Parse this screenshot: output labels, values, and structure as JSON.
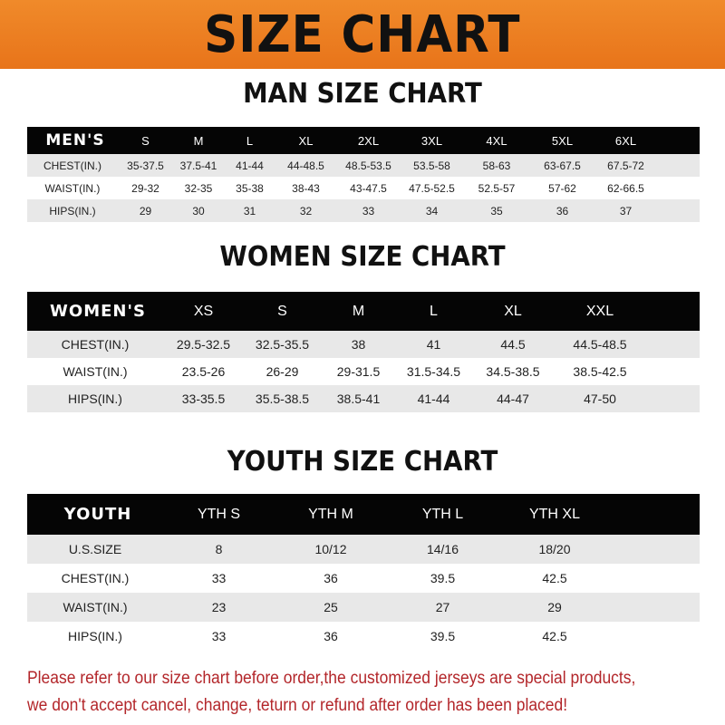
{
  "banner": {
    "title": "SIZE CHART"
  },
  "men": {
    "title": "MAN SIZE CHART",
    "header": [
      "MEN'S",
      "S",
      "M",
      "L",
      "XL",
      "2XL",
      "3XL",
      "4XL",
      "5XL",
      "6XL"
    ],
    "rows": [
      [
        "CHEST(IN.)",
        "35-37.5",
        "37.5-41",
        "41-44",
        "44-48.5",
        "48.5-53.5",
        "53.5-58",
        "58-63",
        "63-67.5",
        "67.5-72"
      ],
      [
        "WAIST(IN.)",
        "29-32",
        "32-35",
        "35-38",
        "38-43",
        "43-47.5",
        "47.5-52.5",
        "52.5-57",
        "57-62",
        "62-66.5"
      ],
      [
        "HIPS(IN.)",
        "29",
        "30",
        "31",
        "32",
        "33",
        "34",
        "35",
        "36",
        "37"
      ]
    ]
  },
  "women": {
    "title": "WOMEN SIZE CHART",
    "header": [
      "WOMEN'S",
      "XS",
      "S",
      "M",
      "L",
      "XL",
      "XXL"
    ],
    "rows": [
      [
        "CHEST(IN.)",
        "29.5-32.5",
        "32.5-35.5",
        "38",
        "41",
        "44.5",
        "44.5-48.5"
      ],
      [
        "WAIST(IN.)",
        "23.5-26",
        "26-29",
        "29-31.5",
        "31.5-34.5",
        "34.5-38.5",
        "38.5-42.5"
      ],
      [
        "HIPS(IN.)",
        "33-35.5",
        "35.5-38.5",
        "38.5-41",
        "41-44",
        "44-47",
        "47-50"
      ]
    ]
  },
  "youth": {
    "title": "YOUTH SIZE CHART",
    "header": [
      "YOUTH",
      "YTH S",
      "YTH M",
      "YTH L",
      "YTH XL"
    ],
    "rows": [
      [
        "U.S.SIZE",
        "8",
        "10/12",
        "14/16",
        "18/20"
      ],
      [
        "CHEST(IN.)",
        "33",
        "36",
        "39.5",
        "42.5"
      ],
      [
        "WAIST(IN.)",
        "23",
        "25",
        "27",
        "29"
      ],
      [
        "HIPS(IN.)",
        "33",
        "36",
        "39.5",
        "42.5"
      ]
    ]
  },
  "footer": {
    "line1": "Please refer to our size chart before order,the customized jerseys are special products,",
    "line2": "we don't accept cancel, change, teturn or refund after order has been placed!"
  }
}
